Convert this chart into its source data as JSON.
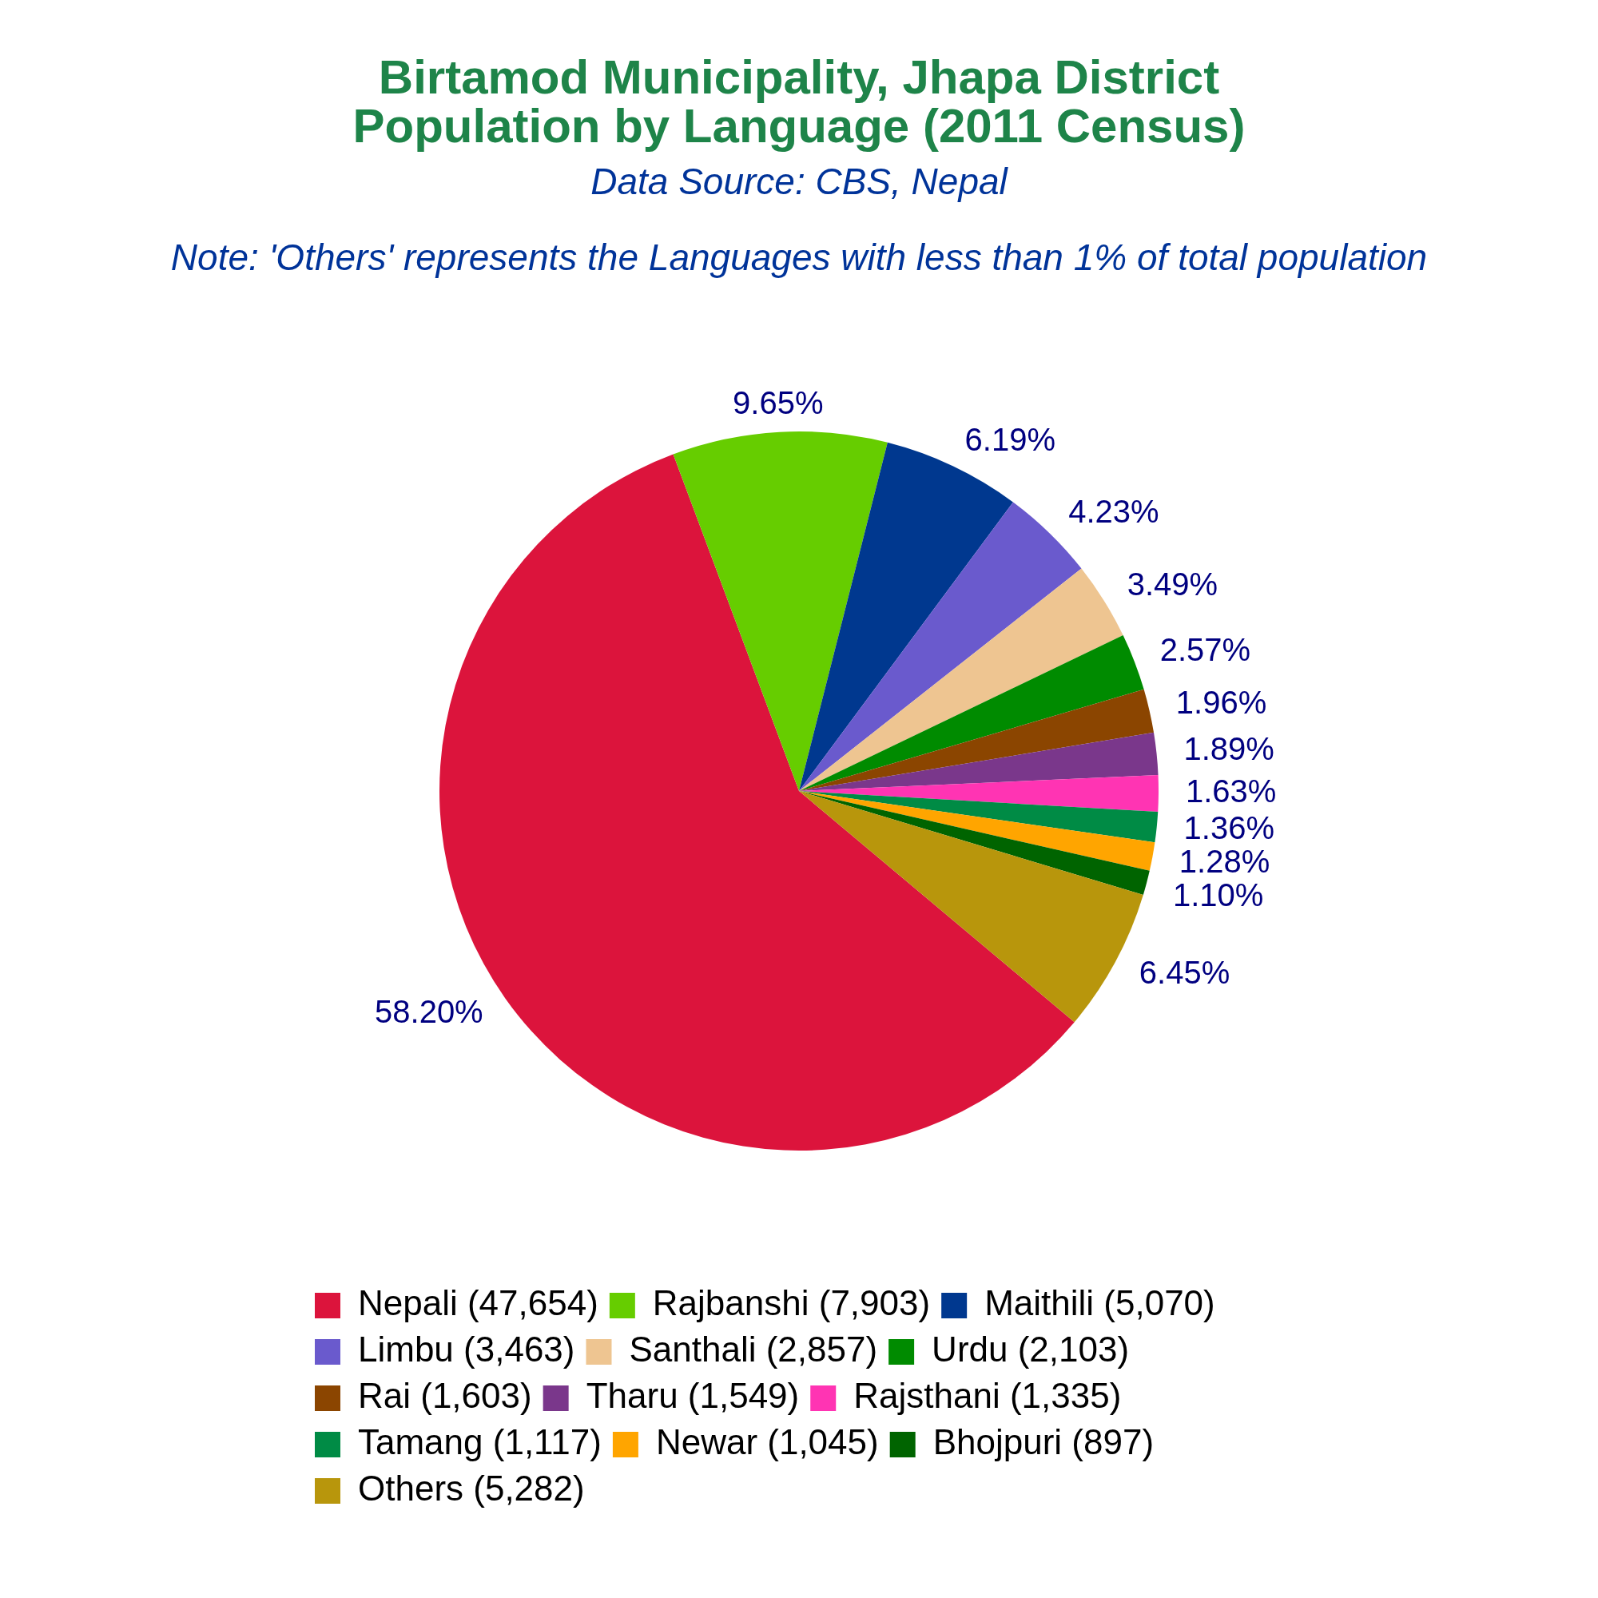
{
  "chart_data": {
    "type": "pie",
    "title": "Birtamod Municipality, Jhapa District\nPopulation by Language (2011 Census)",
    "annotations": [
      "Data Source: CBS, Nepal",
      "Note: 'Others' represents the Languages with less than 1% of total population"
    ],
    "categories": [
      "Nepali (47,654)",
      "Rajbanshi (7,903)",
      "Maithili (5,070)",
      "Limbu (3,463)",
      "Santhali (2,857)",
      "Urdu (2,103)",
      "Rai (1,603)",
      "Tharu (1,549)",
      "Rajsthani (1,335)",
      "Tamang (1,117)",
      "Newar (1,045)",
      "Bhojpuri (897)",
      "Others (5,282)"
    ],
    "values": [
      58.2,
      9.65,
      6.19,
      4.23,
      3.49,
      2.57,
      1.96,
      1.89,
      1.63,
      1.36,
      1.28,
      1.1,
      6.45
    ],
    "colors": [
      "#dc143c",
      "#66cd00",
      "#00388f",
      "#6a5acd",
      "#eec591",
      "#008b00",
      "#8b4500",
      "#7a378b",
      "#ff34b3",
      "#008b45",
      "#ffa500",
      "#006400",
      "#b8960c"
    ],
    "value_labels": [
      "58.20%",
      "9.65%",
      "6.19%",
      "4.23%",
      "3.49%",
      "2.57%",
      "1.96%",
      "1.89%",
      "1.63%",
      "1.36%",
      "1.28%",
      "1.10%",
      "6.45%"
    ],
    "legend": "bottom"
  }
}
